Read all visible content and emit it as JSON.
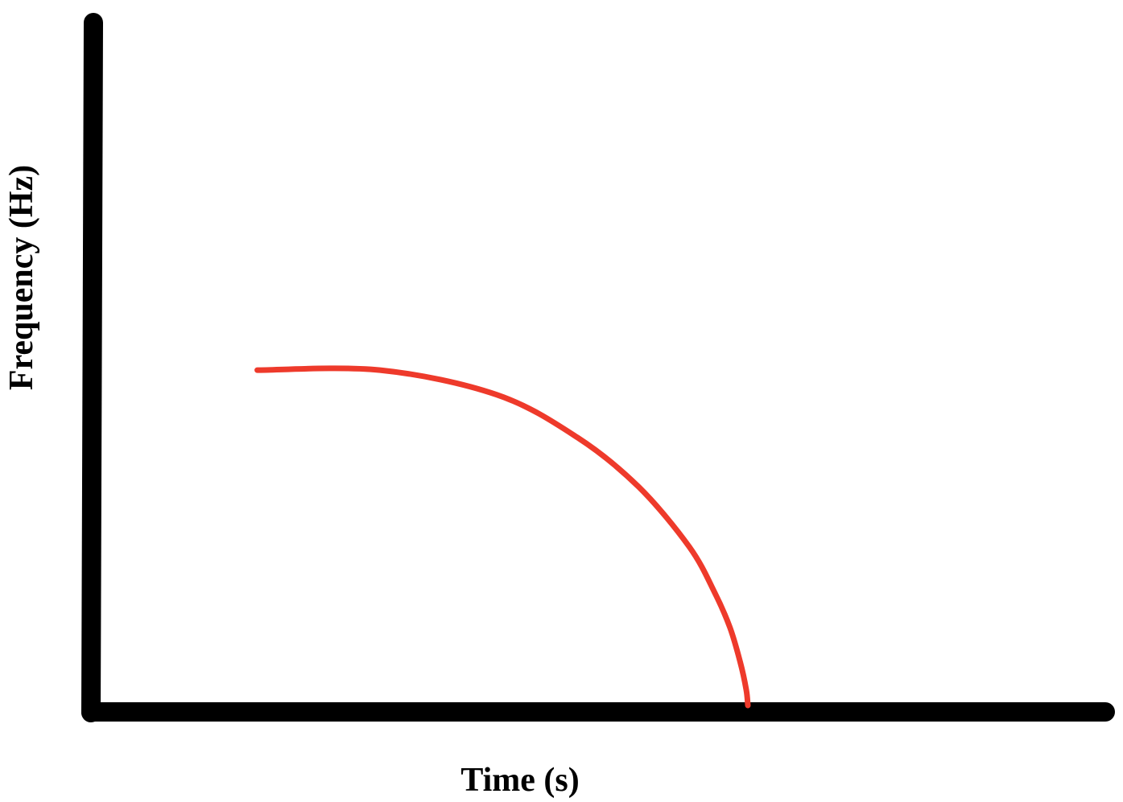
{
  "chart_data": {
    "type": "line",
    "title": "",
    "xlabel": "Time (s)",
    "ylabel": "Frequency (Hz)",
    "xlim": [
      0,
      1
    ],
    "ylim": [
      0,
      1
    ],
    "grid": false,
    "series": [
      {
        "color": "#ee3a2b",
        "x": [
          0.164,
          0.285,
          0.4,
          0.48,
          0.54,
          0.59,
          0.615,
          0.63,
          0.64,
          0.646,
          0.6476
        ],
        "y": [
          0.491,
          0.491,
          0.455,
          0.392,
          0.32,
          0.232,
          0.165,
          0.114,
          0.064,
          0.023,
          0.0
        ]
      }
    ]
  },
  "colors": {
    "axis": "#000000",
    "curve": "#ee3a2b",
    "background": "#ffffff"
  }
}
